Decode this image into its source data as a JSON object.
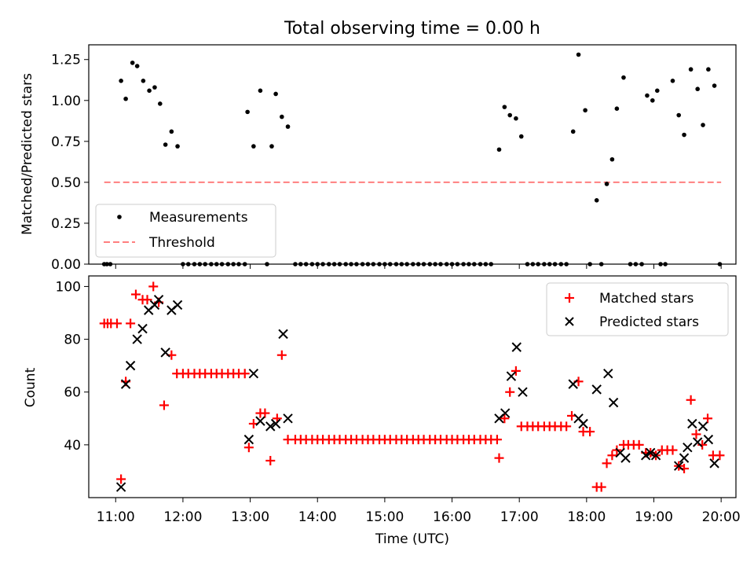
{
  "title": "Total observing time = 0.00 h",
  "x_ticks": [
    "11:00",
    "12:00",
    "13:00",
    "14:00",
    "15:00",
    "16:00",
    "17:00",
    "18:00",
    "19:00",
    "20:00"
  ],
  "chart_data": [
    {
      "type": "scatter",
      "title": "Total observing time = 0.00 h",
      "xlabel": "",
      "ylabel": "Matched/Predicted stars",
      "xlim": [
        10.6,
        20.22
      ],
      "ylim": [
        0,
        1.34
      ],
      "yticks": [
        "0.00",
        "0.25",
        "0.50",
        "0.75",
        "1.00",
        "1.25"
      ],
      "legend_position": "lower-left",
      "grid": false,
      "threshold": {
        "name": "Threshold",
        "value": 0.5,
        "x_range": [
          10.83,
          20.0
        ],
        "color": "#ff7f7f"
      },
      "series": [
        {
          "name": "Measurements",
          "color": "#000000",
          "points": [
            [
              10.83,
              0
            ],
            [
              10.87,
              0
            ],
            [
              10.92,
              0
            ],
            [
              11.08,
              1.12
            ],
            [
              11.15,
              1.01
            ],
            [
              11.25,
              1.23
            ],
            [
              11.32,
              1.21
            ],
            [
              11.41,
              1.12
            ],
            [
              11.5,
              1.06
            ],
            [
              11.58,
              1.08
            ],
            [
              11.66,
              0.98
            ],
            [
              11.74,
              0.73
            ],
            [
              11.83,
              0.81
            ],
            [
              11.92,
              0.72
            ],
            [
              12.0,
              0
            ],
            [
              12.08,
              0
            ],
            [
              12.17,
              0
            ],
            [
              12.25,
              0
            ],
            [
              12.33,
              0
            ],
            [
              12.42,
              0
            ],
            [
              12.5,
              0
            ],
            [
              12.58,
              0
            ],
            [
              12.67,
              0
            ],
            [
              12.75,
              0
            ],
            [
              12.83,
              0
            ],
            [
              12.92,
              0
            ],
            [
              12.96,
              0.93
            ],
            [
              13.05,
              0.72
            ],
            [
              13.15,
              1.06
            ],
            [
              13.25,
              0
            ],
            [
              13.32,
              0.72
            ],
            [
              13.38,
              1.04
            ],
            [
              13.47,
              0.9
            ],
            [
              13.56,
              0.84
            ],
            [
              13.67,
              0
            ],
            [
              13.75,
              0
            ],
            [
              13.83,
              0
            ],
            [
              13.92,
              0
            ],
            [
              14.0,
              0
            ],
            [
              14.08,
              0
            ],
            [
              14.17,
              0
            ],
            [
              14.25,
              0
            ],
            [
              14.33,
              0
            ],
            [
              14.42,
              0
            ],
            [
              14.5,
              0
            ],
            [
              14.58,
              0
            ],
            [
              14.67,
              0
            ],
            [
              14.75,
              0
            ],
            [
              14.83,
              0
            ],
            [
              14.92,
              0
            ],
            [
              15.0,
              0
            ],
            [
              15.08,
              0
            ],
            [
              15.17,
              0
            ],
            [
              15.25,
              0
            ],
            [
              15.33,
              0
            ],
            [
              15.42,
              0
            ],
            [
              15.5,
              0
            ],
            [
              15.58,
              0
            ],
            [
              15.67,
              0
            ],
            [
              15.75,
              0
            ],
            [
              15.83,
              0
            ],
            [
              15.92,
              0
            ],
            [
              16.0,
              0
            ],
            [
              16.08,
              0
            ],
            [
              16.17,
              0
            ],
            [
              16.25,
              0
            ],
            [
              16.33,
              0
            ],
            [
              16.42,
              0
            ],
            [
              16.5,
              0
            ],
            [
              16.58,
              0
            ],
            [
              16.7,
              0.7
            ],
            [
              16.78,
              0.96
            ],
            [
              16.86,
              0.91
            ],
            [
              16.95,
              0.89
            ],
            [
              17.03,
              0.78
            ],
            [
              17.12,
              0
            ],
            [
              17.2,
              0
            ],
            [
              17.28,
              0
            ],
            [
              17.37,
              0
            ],
            [
              17.45,
              0
            ],
            [
              17.53,
              0
            ],
            [
              17.62,
              0
            ],
            [
              17.7,
              0
            ],
            [
              17.8,
              0.81
            ],
            [
              17.88,
              1.28
            ],
            [
              17.98,
              0.94
            ],
            [
              18.05,
              0
            ],
            [
              18.15,
              0.39
            ],
            [
              18.22,
              0
            ],
            [
              18.3,
              0.49
            ],
            [
              18.38,
              0.64
            ],
            [
              18.45,
              0.95
            ],
            [
              18.55,
              1.14
            ],
            [
              18.65,
              0
            ],
            [
              18.73,
              0
            ],
            [
              18.82,
              0
            ],
            [
              18.9,
              1.03
            ],
            [
              18.98,
              1.0
            ],
            [
              19.05,
              1.06
            ],
            [
              19.1,
              0
            ],
            [
              19.17,
              0
            ],
            [
              19.28,
              1.12
            ],
            [
              19.37,
              0.91
            ],
            [
              19.45,
              0.79
            ],
            [
              19.55,
              1.19
            ],
            [
              19.65,
              1.07
            ],
            [
              19.73,
              0.85
            ],
            [
              19.81,
              1.19
            ],
            [
              19.9,
              1.09
            ],
            [
              19.98,
              0
            ]
          ]
        }
      ]
    },
    {
      "type": "scatter",
      "xlabel": "Time (UTC)",
      "ylabel": "Count",
      "xlim": [
        10.6,
        20.22
      ],
      "ylim": [
        20,
        104
      ],
      "yticks": [
        "40",
        "60",
        "80",
        "100"
      ],
      "legend_position": "upper-right",
      "grid": false,
      "series": [
        {
          "name": "Matched stars",
          "marker": "+",
          "color": "#ff0000",
          "points": [
            [
              10.83,
              86
            ],
            [
              10.88,
              86
            ],
            [
              10.93,
              86
            ],
            [
              11.02,
              86
            ],
            [
              11.08,
              27
            ],
            [
              11.15,
              64
            ],
            [
              11.22,
              86
            ],
            [
              11.3,
              97
            ],
            [
              11.4,
              95
            ],
            [
              11.47,
              95
            ],
            [
              11.56,
              100
            ],
            [
              11.64,
              94
            ],
            [
              11.72,
              55
            ],
            [
              11.83,
              74
            ],
            [
              11.91,
              67
            ],
            [
              12.0,
              67
            ],
            [
              12.08,
              67
            ],
            [
              12.17,
              67
            ],
            [
              12.25,
              67
            ],
            [
              12.33,
              67
            ],
            [
              12.42,
              67
            ],
            [
              12.5,
              67
            ],
            [
              12.58,
              67
            ],
            [
              12.67,
              67
            ],
            [
              12.75,
              67
            ],
            [
              12.83,
              67
            ],
            [
              12.92,
              67
            ],
            [
              12.98,
              39
            ],
            [
              13.05,
              48
            ],
            [
              13.15,
              52
            ],
            [
              13.22,
              52
            ],
            [
              13.3,
              34
            ],
            [
              13.4,
              50
            ],
            [
              13.47,
              74
            ],
            [
              13.56,
              42
            ],
            [
              13.67,
              42
            ],
            [
              13.75,
              42
            ],
            [
              13.83,
              42
            ],
            [
              13.92,
              42
            ],
            [
              14.0,
              42
            ],
            [
              14.08,
              42
            ],
            [
              14.17,
              42
            ],
            [
              14.25,
              42
            ],
            [
              14.33,
              42
            ],
            [
              14.42,
              42
            ],
            [
              14.5,
              42
            ],
            [
              14.58,
              42
            ],
            [
              14.67,
              42
            ],
            [
              14.75,
              42
            ],
            [
              14.83,
              42
            ],
            [
              14.92,
              42
            ],
            [
              15.0,
              42
            ],
            [
              15.08,
              42
            ],
            [
              15.17,
              42
            ],
            [
              15.25,
              42
            ],
            [
              15.33,
              42
            ],
            [
              15.42,
              42
            ],
            [
              15.5,
              42
            ],
            [
              15.58,
              42
            ],
            [
              15.67,
              42
            ],
            [
              15.75,
              42
            ],
            [
              15.83,
              42
            ],
            [
              15.92,
              42
            ],
            [
              16.0,
              42
            ],
            [
              16.08,
              42
            ],
            [
              16.17,
              42
            ],
            [
              16.25,
              42
            ],
            [
              16.33,
              42
            ],
            [
              16.42,
              42
            ],
            [
              16.5,
              42
            ],
            [
              16.58,
              42
            ],
            [
              16.67,
              42
            ],
            [
              16.7,
              35
            ],
            [
              16.78,
              50
            ],
            [
              16.86,
              60
            ],
            [
              16.95,
              68
            ],
            [
              17.03,
              47
            ],
            [
              17.12,
              47
            ],
            [
              17.2,
              47
            ],
            [
              17.28,
              47
            ],
            [
              17.37,
              47
            ],
            [
              17.45,
              47
            ],
            [
              17.53,
              47
            ],
            [
              17.62,
              47
            ],
            [
              17.7,
              47
            ],
            [
              17.78,
              51
            ],
            [
              17.88,
              64
            ],
            [
              17.95,
              45
            ],
            [
              18.05,
              45
            ],
            [
              18.15,
              24
            ],
            [
              18.22,
              24
            ],
            [
              18.3,
              33
            ],
            [
              18.38,
              36
            ],
            [
              18.45,
              38
            ],
            [
              18.55,
              40
            ],
            [
              18.62,
              40
            ],
            [
              18.7,
              40
            ],
            [
              18.78,
              40
            ],
            [
              18.88,
              37
            ],
            [
              18.95,
              37
            ],
            [
              19.03,
              36
            ],
            [
              19.12,
              38
            ],
            [
              19.2,
              38
            ],
            [
              19.28,
              38
            ],
            [
              19.37,
              32
            ],
            [
              19.45,
              31
            ],
            [
              19.55,
              57
            ],
            [
              19.63,
              44
            ],
            [
              19.72,
              40
            ],
            [
              19.8,
              50
            ],
            [
              19.88,
              36
            ],
            [
              19.98,
              36
            ]
          ]
        },
        {
          "name": "Predicted stars",
          "marker": "x",
          "color": "#000000",
          "points": [
            [
              11.08,
              24
            ],
            [
              11.15,
              63
            ],
            [
              11.22,
              70
            ],
            [
              11.32,
              80
            ],
            [
              11.4,
              84
            ],
            [
              11.49,
              91
            ],
            [
              11.58,
              93
            ],
            [
              11.64,
              95
            ],
            [
              11.74,
              75
            ],
            [
              11.83,
              91
            ],
            [
              11.92,
              93
            ],
            [
              12.98,
              42
            ],
            [
              13.05,
              67
            ],
            [
              13.15,
              49
            ],
            [
              13.3,
              47
            ],
            [
              13.38,
              48
            ],
            [
              13.49,
              82
            ],
            [
              13.56,
              50
            ],
            [
              16.7,
              50
            ],
            [
              16.79,
              52
            ],
            [
              16.88,
              66
            ],
            [
              16.96,
              77
            ],
            [
              17.05,
              60
            ],
            [
              17.8,
              63
            ],
            [
              17.88,
              50
            ],
            [
              17.95,
              48
            ],
            [
              18.15,
              61
            ],
            [
              18.32,
              67
            ],
            [
              18.4,
              56
            ],
            [
              18.5,
              37
            ],
            [
              18.58,
              35
            ],
            [
              18.88,
              36
            ],
            [
              18.95,
              37
            ],
            [
              19.03,
              36
            ],
            [
              19.37,
              32
            ],
            [
              19.45,
              35
            ],
            [
              19.5,
              39
            ],
            [
              19.57,
              48
            ],
            [
              19.65,
              41
            ],
            [
              19.73,
              47
            ],
            [
              19.81,
              42
            ],
            [
              19.9,
              33
            ]
          ]
        }
      ]
    }
  ]
}
